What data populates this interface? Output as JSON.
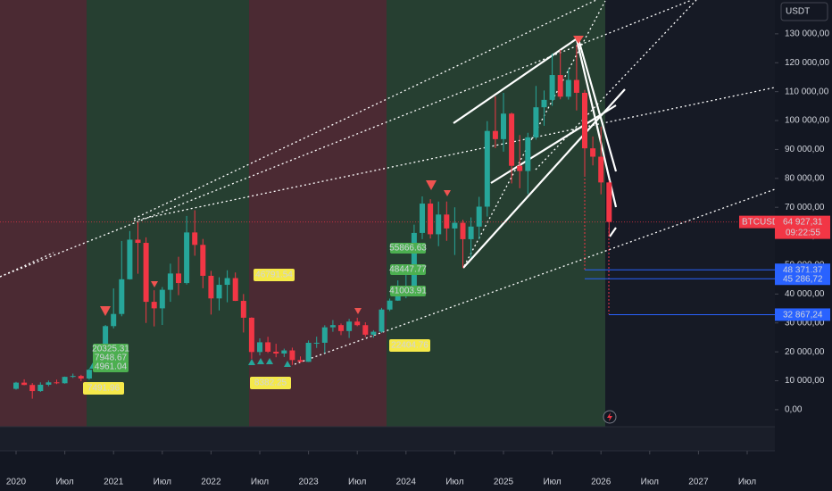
{
  "chart_data": {
    "type": "candlestick",
    "symbol": "BTCUSDT",
    "currency": "USDT",
    "up_color": "#26a69a",
    "down_color": "#f23645",
    "x": [
      "2020-01",
      "2020-02",
      "2020-03",
      "2020-04",
      "2020-05",
      "2020-06",
      "2020-07",
      "2020-08",
      "2020-09",
      "2020-10",
      "2020-11",
      "2020-12",
      "2021-01",
      "2021-02",
      "2021-03",
      "2021-04",
      "2021-05",
      "2021-06",
      "2021-07",
      "2021-08",
      "2021-09",
      "2021-10",
      "2021-11",
      "2021-12",
      "2022-01",
      "2022-02",
      "2022-03",
      "2022-04",
      "2022-05",
      "2022-06",
      "2022-07",
      "2022-08",
      "2022-09",
      "2022-10",
      "2022-11",
      "2022-12",
      "2023-01",
      "2023-02",
      "2023-03",
      "2023-04",
      "2023-05",
      "2023-06",
      "2023-07",
      "2023-08",
      "2023-09",
      "2023-10",
      "2023-11",
      "2023-12",
      "2024-01",
      "2024-02",
      "2024-03",
      "2024-04",
      "2024-05",
      "2024-06",
      "2024-07",
      "2024-08",
      "2024-09",
      "2024-10",
      "2024-11",
      "2024-12",
      "2025-01",
      "2025-02",
      "2025-03",
      "2025-04",
      "2025-05",
      "2025-06",
      "2025-07",
      "2025-08",
      "2025-09",
      "2025-10",
      "2025-11",
      "2025-12",
      "2026-01",
      "2026-02"
    ],
    "open": [
      7200,
      9350,
      8550,
      6430,
      8620,
      9450,
      9140,
      11350,
      11650,
      10780,
      13800,
      19700,
      28900,
      33100,
      45100,
      58800,
      57700,
      37300,
      35050,
      41460,
      47100,
      43800,
      61300,
      57000,
      46300,
      38480,
      43180,
      45510,
      37630,
      31800,
      19940,
      23300,
      20050,
      19420,
      20490,
      17165,
      16540,
      23125,
      23140,
      28480,
      29250,
      27200,
      30470,
      29230,
      25930,
      26960,
      34640,
      37720,
      42280,
      42580,
      61130,
      71280,
      60670,
      67490,
      62680,
      64630,
      58970,
      63330,
      70220,
      96400,
      93580,
      102400,
      84350,
      82550,
      94200,
      104600,
      107150,
      115750,
      108250,
      114050,
      109600,
      90400,
      87500,
      78600
    ],
    "high": [
      9600,
      10500,
      9200,
      9450,
      10080,
      10380,
      11450,
      12470,
      12070,
      14100,
      19900,
      29300,
      41950,
      58350,
      61800,
      64850,
      59600,
      41300,
      42400,
      50500,
      52900,
      67000,
      69000,
      59050,
      48000,
      45800,
      48200,
      47450,
      40000,
      31950,
      24670,
      25200,
      22800,
      21100,
      21450,
      18400,
      23960,
      25250,
      29200,
      31000,
      29820,
      31400,
      31800,
      30220,
      27480,
      35200,
      38430,
      44730,
      48970,
      64000,
      73780,
      72800,
      71980,
      72000,
      70000,
      65650,
      66500,
      73620,
      99800,
      108350,
      109580,
      102750,
      95000,
      95760,
      111980,
      110400,
      123200,
      124450,
      117900,
      126200,
      110600,
      94500,
      97900,
      79300
    ],
    "low": [
      6900,
      8450,
      3800,
      6150,
      8100,
      8830,
      8980,
      10980,
      9880,
      10370,
      13200,
      17600,
      28100,
      32300,
      45000,
      47000,
      30000,
      28800,
      29300,
      37300,
      39600,
      43280,
      53250,
      42000,
      32900,
      34320,
      37150,
      37580,
      26700,
      17600,
      18780,
      19600,
      18125,
      18200,
      15480,
      16260,
      16500,
      21350,
      19550,
      26940,
      25800,
      24800,
      28860,
      25160,
      24900,
      26550,
      34100,
      37630,
      38550,
      41880,
      59000,
      59190,
      56550,
      58400,
      53500,
      49000,
      52550,
      58900,
      66800,
      90500,
      89250,
      78250,
      76600,
      74600,
      93400,
      98200,
      105100,
      107350,
      107250,
      103500,
      80600,
      84500,
      74500,
      60000
    ],
    "close": [
      9350,
      8550,
      6430,
      8620,
      9450,
      9140,
      11350,
      11650,
      10780,
      13800,
      19700,
      28900,
      33100,
      45100,
      58800,
      57700,
      37300,
      35050,
      41460,
      47100,
      43800,
      61300,
      57000,
      46300,
      38480,
      43180,
      45510,
      37630,
      31800,
      19940,
      23300,
      20050,
      19420,
      20490,
      17165,
      16540,
      23125,
      23140,
      28480,
      29250,
      27200,
      30470,
      29230,
      25930,
      26960,
      34640,
      37720,
      42280,
      42580,
      61130,
      71280,
      60670,
      67490,
      62680,
      64630,
      58970,
      63330,
      70220,
      96400,
      93580,
      102400,
      84350,
      82550,
      94200,
      104600,
      107150,
      115750,
      108250,
      114050,
      109600,
      90400,
      87500,
      78600,
      64927.31
    ],
    "xticks": [
      {
        "value": "2020-01",
        "label": "2020"
      },
      {
        "value": "2020-07",
        "label": "Июл"
      },
      {
        "value": "2021-01",
        "label": "2021"
      },
      {
        "value": "2021-07",
        "label": "Июл"
      },
      {
        "value": "2022-01",
        "label": "2022"
      },
      {
        "value": "2022-07",
        "label": "Июл"
      },
      {
        "value": "2023-01",
        "label": "2023"
      },
      {
        "value": "2023-07",
        "label": "Июл"
      },
      {
        "value": "2024-01",
        "label": "2024"
      },
      {
        "value": "2024-07",
        "label": "Июл"
      },
      {
        "value": "2025-01",
        "label": "2025"
      },
      {
        "value": "2025-07",
        "label": "Июл"
      },
      {
        "value": "2026-01",
        "label": "2026"
      },
      {
        "value": "2026-07",
        "label": "Июл"
      },
      {
        "value": "2027-01",
        "label": "2027"
      },
      {
        "value": "2027-07",
        "label": "Июл"
      }
    ],
    "ylim": [
      -5900,
      141700
    ],
    "yticks": [
      {
        "value": 0,
        "label": "0,00"
      },
      {
        "value": 10000,
        "label": "10 000,00"
      },
      {
        "value": 20000,
        "label": "20 000,00"
      },
      {
        "value": 30000,
        "label": "30 000,00"
      },
      {
        "value": 40000,
        "label": "40 000,00"
      },
      {
        "value": 50000,
        "label": "50 000,00"
      },
      {
        "value": 60000,
        "label": "60 000,00"
      },
      {
        "value": 70000,
        "label": "70 000,00"
      },
      {
        "value": 80000,
        "label": "80 000,00"
      },
      {
        "value": 90000,
        "label": "90 000,00"
      },
      {
        "value": 100000,
        "label": "100 000,00"
      },
      {
        "value": 110000,
        "label": "110 000,00"
      },
      {
        "value": 120000,
        "label": "120 000,00"
      },
      {
        "value": 130000,
        "label": "130 000,00"
      }
    ],
    "last_price": {
      "value": 64927.31,
      "label": "64 927,31"
    },
    "countdown": "09:22:55",
    "levels": [
      {
        "value": 48371.37,
        "label": "48 371,37"
      },
      {
        "value": 45286.72,
        "label": "45 286,72"
      },
      {
        "value": 32867.24,
        "label": "32 867,24"
      }
    ],
    "yellow_labels": [
      "7491.96",
      "46791.54",
      "8382.25",
      "22404.76"
    ],
    "green_labels": [
      "20325.31",
      "7948.67",
      "4961.04",
      "55866.63",
      "48447.77",
      "41003.91"
    ]
  }
}
